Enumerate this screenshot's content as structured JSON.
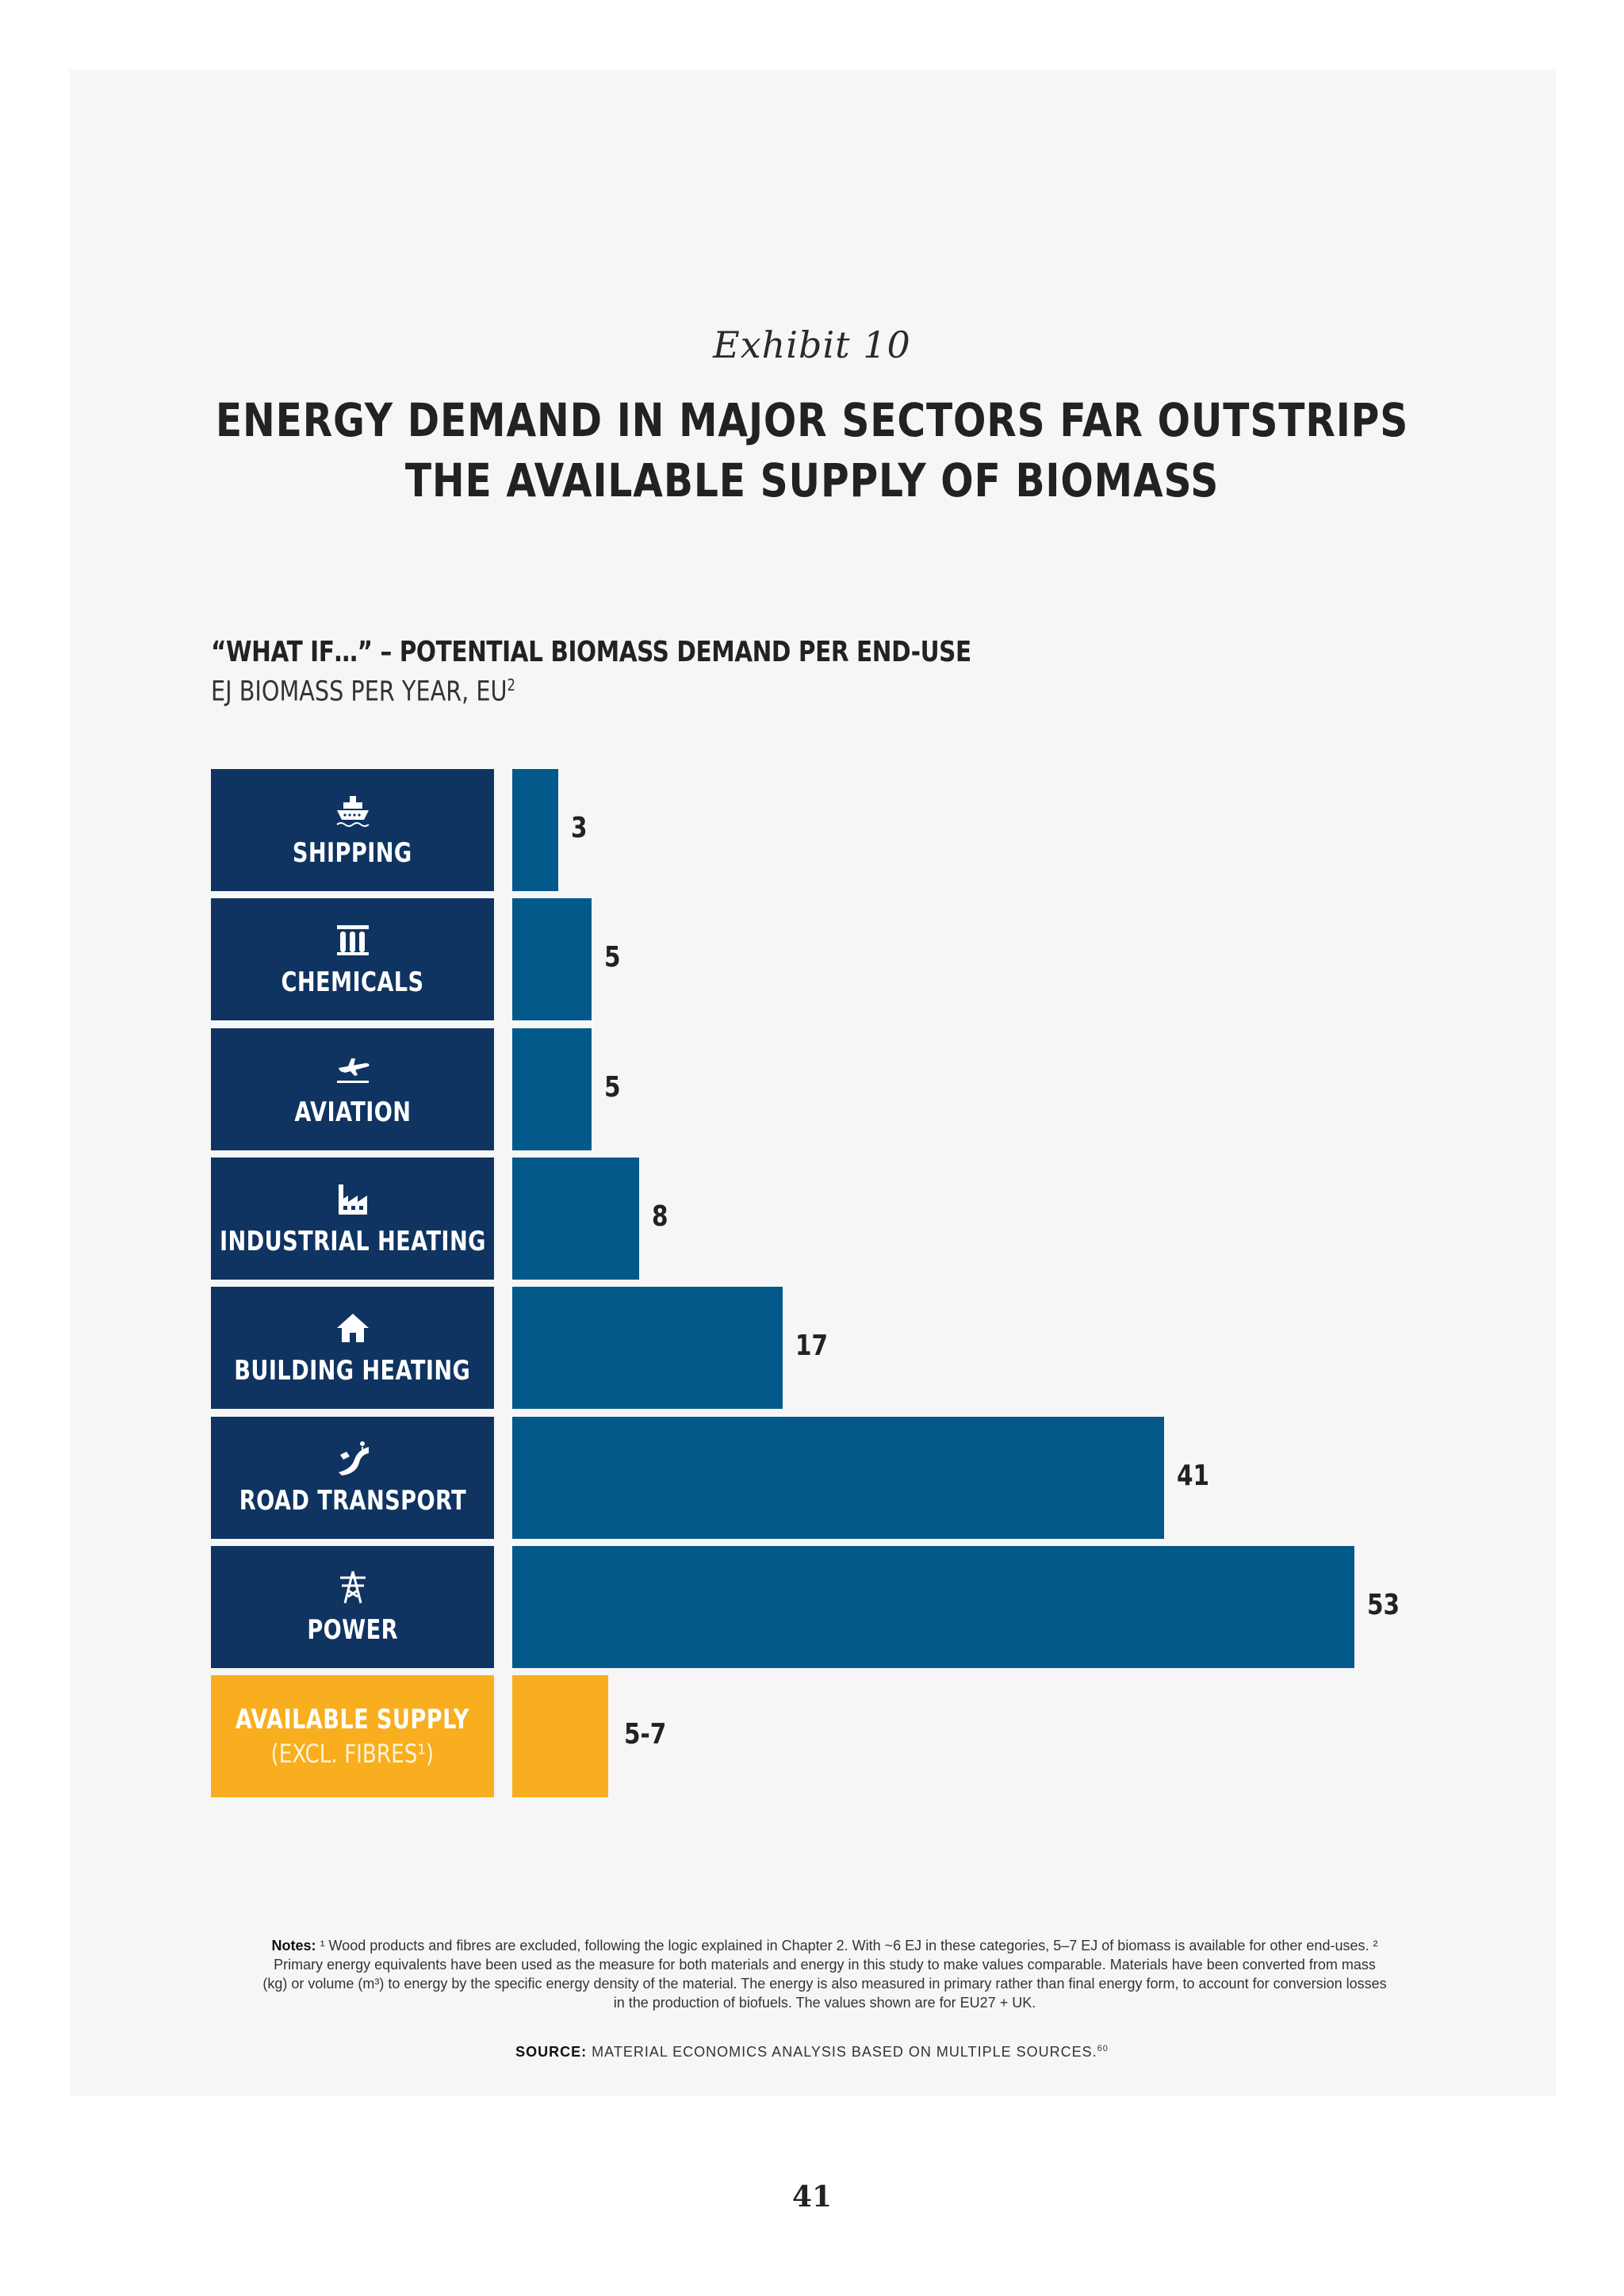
{
  "exhibit_label": "Exhibit 10",
  "title_line1": "ENERGY DEMAND IN MAJOR SECTORS FAR OUTSTRIPS",
  "title_line2": "THE AVAILABLE SUPPLY OF BIOMASS",
  "colors": {
    "label_bg": "#0f3461",
    "bar": "#03598a",
    "supply": "#f8ae1e",
    "panel_bg": "#f6f6f6"
  },
  "chart_data": {
    "type": "bar",
    "orientation": "horizontal",
    "title": "“WHAT IF…” – POTENTIAL BIOMASS DEMAND PER END-USE",
    "unit_label": "EJ BIOMASS PER YEAR, EU",
    "unit_superscript": "2",
    "categories": [
      "SHIPPING",
      "CHEMICALS",
      "AVIATION",
      "INDUSTRIAL HEATING",
      "BUILDING HEATING",
      "ROAD TRANSPORT",
      "POWER"
    ],
    "icons": [
      "ship-icon",
      "chemicals-icon",
      "airplane-icon",
      "factory-icon",
      "house-icon",
      "road-icon",
      "pylon-icon"
    ],
    "values": [
      3,
      5,
      5,
      8,
      17,
      41,
      53
    ],
    "value_labels": [
      "3",
      "5",
      "5",
      "8",
      "17",
      "41",
      "53"
    ],
    "supply": {
      "label": "AVAILABLE SUPPLY",
      "sublabel": "(EXCL. FIBRES¹)",
      "range": [
        5,
        7
      ],
      "value_label": "5-7"
    },
    "xlim": [
      0,
      53
    ],
    "grid": false,
    "legend": "none"
  },
  "notes": {
    "heading": "Notes:",
    "text": "¹ Wood products and fibres are excluded, following the logic explained in Chapter 2. With ~6 EJ in these categories, 5–7 EJ of biomass is available for other end-uses. ² Primary energy equivalents have been used as the measure for both materials and energy in this study to make values comparable. Materials have been converted from mass (kg) or volume (m³) to energy by the specific energy density of the material. The energy is also measured in primary rather than final energy form, to account for conversion losses in the production of biofuels. The values shown are for EU27 + UK."
  },
  "source": {
    "heading": "SOURCE:",
    "text": "MATERIAL ECONOMICS ANALYSIS BASED ON MULTIPLE SOURCES.",
    "superscript": "60"
  },
  "page_number": "41"
}
